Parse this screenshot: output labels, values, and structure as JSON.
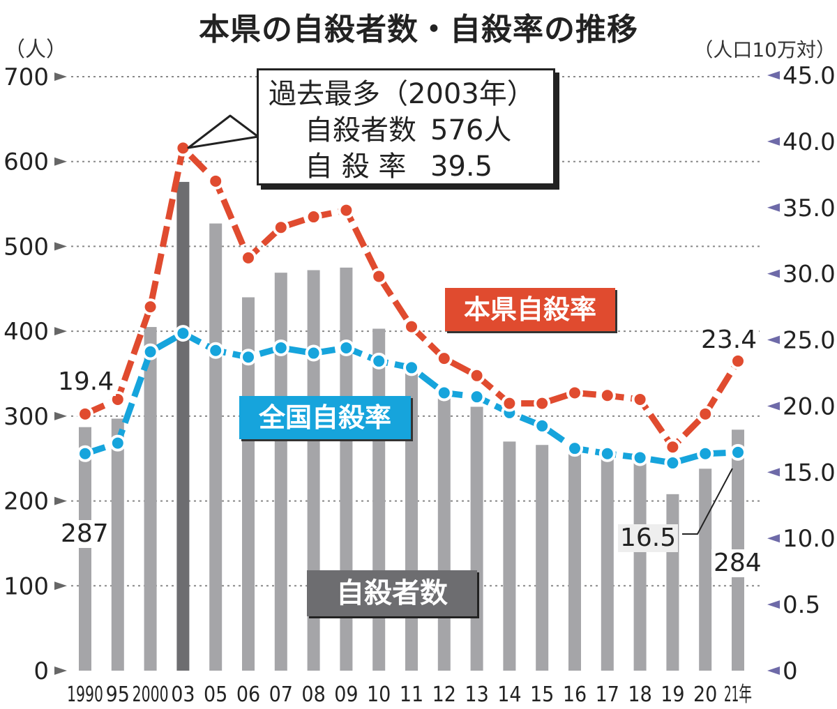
{
  "title": "本県の自殺者数・自殺率の推移",
  "left_unit": "（人）",
  "right_unit": "（人口10万対）",
  "legend": {
    "prefecture_rate": "本県自殺率",
    "national_rate": "全国自殺率",
    "suicide_count": "自殺者数"
  },
  "callout": {
    "title": "過去最多（2003年）",
    "count_label": "自殺者数",
    "count_value": "576人",
    "rate_label": "自 殺 率",
    "rate_value": "39.5"
  },
  "labels": {
    "count_1990": "287",
    "count_2021": "284",
    "rate_1990": "19.4",
    "rate_2021": "23.4",
    "national_2021": "16.5"
  },
  "colors": {
    "bar": "#a5a5a8",
    "bar_highlight": "#6d6d70",
    "prefecture_rate": "#e04b2f",
    "national_rate": "#16a4dc",
    "grid": "#888888",
    "left_tick_marker": "#666666",
    "right_tick_marker": "#6e6aa8"
  },
  "chart_data": {
    "type": "bar",
    "categories": [
      "1990",
      "95",
      "2000",
      "03",
      "05",
      "06",
      "07",
      "08",
      "09",
      "10",
      "11",
      "12",
      "13",
      "14",
      "15",
      "16",
      "17",
      "18",
      "19",
      "20",
      "21年"
    ],
    "series": [
      {
        "name": "自殺者数",
        "type": "bar",
        "axis": "left",
        "values": [
          287,
          297,
          405,
          576,
          527,
          440,
          469,
          472,
          475,
          403,
          353,
          321,
          311,
          270,
          266,
          257,
          262,
          252,
          208,
          238,
          284
        ]
      },
      {
        "name": "本県自殺率",
        "type": "line",
        "axis": "right",
        "values": [
          19.4,
          20.5,
          27.5,
          39.5,
          37.0,
          31.2,
          33.5,
          34.3,
          34.8,
          29.8,
          26.0,
          23.6,
          22.3,
          20.2,
          20.2,
          21.0,
          20.8,
          20.5,
          16.9,
          19.4,
          23.4
        ]
      },
      {
        "name": "全国自殺率",
        "type": "line",
        "axis": "right",
        "values": [
          16.4,
          17.2,
          24.1,
          25.5,
          24.2,
          23.7,
          24.4,
          24.0,
          24.4,
          23.4,
          22.9,
          21.0,
          20.7,
          19.5,
          18.5,
          16.8,
          16.4,
          16.1,
          15.7,
          16.4,
          16.5
        ]
      }
    ],
    "highlight_category": "03",
    "y_left": {
      "ticks": [
        "0",
        "100",
        "200",
        "300",
        "400",
        "500",
        "600",
        "700"
      ],
      "range": [
        0,
        700
      ]
    },
    "y_right": {
      "ticks": [
        "0",
        "0.5",
        "10.0",
        "15.0",
        "20.0",
        "25.0",
        "30.0",
        "35.0",
        "40.0",
        "45.0"
      ],
      "range": [
        0,
        45
      ]
    },
    "grid": true
  }
}
